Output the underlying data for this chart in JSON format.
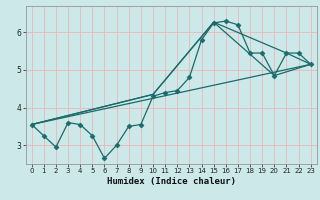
{
  "title": "",
  "xlabel": "Humidex (Indice chaleur)",
  "ylabel": "",
  "bg_color": "#cce8e8",
  "grid_color": "#e8b8b8",
  "line_color": "#1a6b6b",
  "xlim": [
    -0.5,
    23.5
  ],
  "ylim": [
    2.5,
    6.7
  ],
  "yticks": [
    3,
    4,
    5,
    6
  ],
  "xticks": [
    0,
    1,
    2,
    3,
    4,
    5,
    6,
    7,
    8,
    9,
    10,
    11,
    12,
    13,
    14,
    15,
    16,
    17,
    18,
    19,
    20,
    21,
    22,
    23
  ],
  "series": [
    {
      "x": [
        0,
        1,
        2,
        3,
        4,
        5,
        6,
        7,
        8,
        9,
        10,
        11,
        12,
        13,
        14,
        15,
        16,
        17,
        18,
        19,
        20,
        21,
        22,
        23
      ],
      "y": [
        3.55,
        3.25,
        2.95,
        3.6,
        3.55,
        3.25,
        2.65,
        3.0,
        3.5,
        3.55,
        4.3,
        4.4,
        4.45,
        4.8,
        5.8,
        6.25,
        6.3,
        6.2,
        5.45,
        5.45,
        4.85,
        5.45,
        5.45,
        5.15
      ],
      "marker": "D",
      "markersize": 2.5
    },
    {
      "x": [
        0,
        10,
        15,
        20,
        23
      ],
      "y": [
        3.55,
        4.35,
        6.27,
        4.85,
        5.15
      ],
      "marker": null
    },
    {
      "x": [
        0,
        10,
        15,
        21,
        23
      ],
      "y": [
        3.55,
        4.35,
        6.27,
        5.45,
        5.15
      ],
      "marker": null
    },
    {
      "x": [
        0,
        23
      ],
      "y": [
        3.55,
        5.15
      ],
      "marker": null
    }
  ]
}
